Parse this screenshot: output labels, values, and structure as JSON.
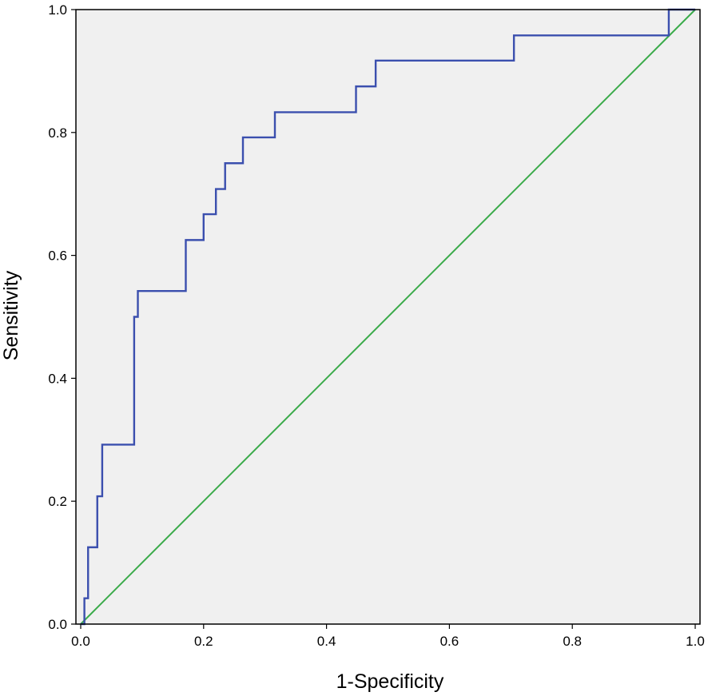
{
  "chart_data": {
    "type": "line",
    "xlabel": "1-Specificity",
    "ylabel": "Sensitivity",
    "xlim": [
      0.0,
      1.0
    ],
    "ylim": [
      0.0,
      1.0
    ],
    "xticks": [
      "0.0",
      "0.2",
      "0.4",
      "0.6",
      "0.8",
      "1.0"
    ],
    "yticks": [
      "0.0",
      "0.2",
      "0.4",
      "0.6",
      "0.8",
      "1.0"
    ],
    "grid": false,
    "colors": {
      "plot_background": "#f0f0f0",
      "roc_curve": "#3b4fae",
      "reference_line": "#3aab4a",
      "frame": "#000000"
    },
    "series": [
      {
        "points": [
          [
            0.0,
            0.0
          ],
          [
            0.006,
            0.0
          ],
          [
            0.006,
            0.042
          ],
          [
            0.012,
            0.042
          ],
          [
            0.012,
            0.125
          ],
          [
            0.027,
            0.125
          ],
          [
            0.027,
            0.208
          ],
          [
            0.035,
            0.208
          ],
          [
            0.035,
            0.292
          ],
          [
            0.087,
            0.292
          ],
          [
            0.087,
            0.5
          ],
          [
            0.093,
            0.5
          ],
          [
            0.093,
            0.542
          ],
          [
            0.171,
            0.542
          ],
          [
            0.171,
            0.625
          ],
          [
            0.2,
            0.625
          ],
          [
            0.2,
            0.667
          ],
          [
            0.22,
            0.667
          ],
          [
            0.22,
            0.708
          ],
          [
            0.235,
            0.708
          ],
          [
            0.235,
            0.75
          ],
          [
            0.264,
            0.75
          ],
          [
            0.264,
            0.792
          ],
          [
            0.316,
            0.792
          ],
          [
            0.316,
            0.833
          ],
          [
            0.448,
            0.833
          ],
          [
            0.448,
            0.875
          ],
          [
            0.48,
            0.875
          ],
          [
            0.48,
            0.917
          ],
          [
            0.705,
            0.917
          ],
          [
            0.705,
            0.958
          ],
          [
            0.957,
            0.958
          ],
          [
            0.957,
            1.0
          ],
          [
            1.0,
            1.0
          ]
        ]
      },
      {
        "points": [
          [
            0.0,
            0.0
          ],
          [
            1.0,
            1.0
          ]
        ]
      }
    ]
  }
}
